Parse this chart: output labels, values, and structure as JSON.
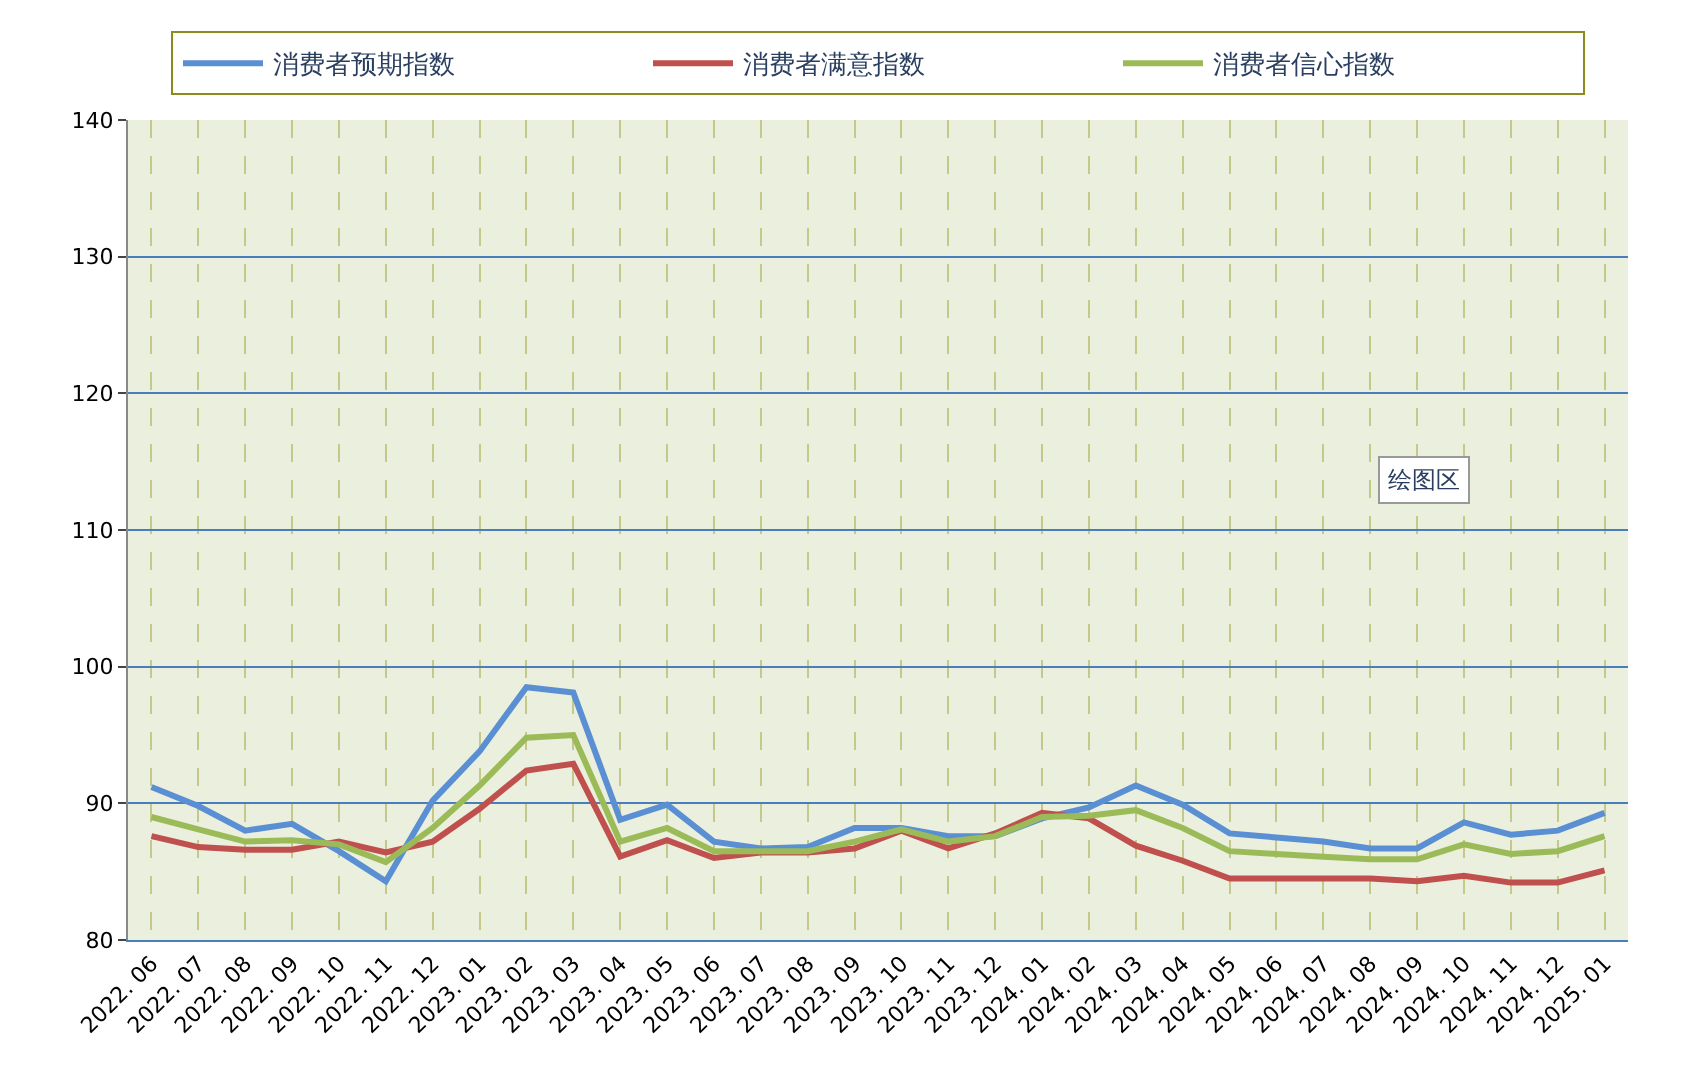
{
  "chart_data": {
    "type": "line",
    "categories": [
      "2022. 06",
      "2022. 07",
      "2022. 08",
      "2022. 09",
      "2022. 10",
      "2022. 11",
      "2022. 12",
      "2023. 01",
      "2023. 02",
      "2023. 03",
      "2023. 04",
      "2023. 05",
      "2023. 06",
      "2023. 07",
      "2023. 08",
      "2023. 09",
      "2023. 10",
      "2023. 11",
      "2023. 12",
      "2024. 01",
      "2024. 02",
      "2024. 03",
      "2024. 04",
      "2024. 05",
      "2024. 06",
      "2024. 07",
      "2024. 08",
      "2024. 09",
      "2024. 10",
      "2024. 11",
      "2024. 12",
      "2025. 01"
    ],
    "series": [
      {
        "name": "消费者预期指数",
        "color": "#5b8fd4",
        "values": [
          91.2,
          89.8,
          88.0,
          88.5,
          86.5,
          84.3,
          90.2,
          93.8,
          98.5,
          98.1,
          88.8,
          89.9,
          87.2,
          86.7,
          86.8,
          88.2,
          88.2,
          87.6,
          87.6,
          88.9,
          89.7,
          91.3,
          89.9,
          87.8,
          87.5,
          87.2,
          86.7,
          86.7,
          88.6,
          87.7,
          88.0,
          89.3
        ]
      },
      {
        "name": "消费者满意指数",
        "color": "#c0504d",
        "values": [
          87.6,
          86.8,
          86.6,
          86.6,
          87.2,
          86.4,
          87.2,
          89.6,
          92.4,
          92.9,
          86.1,
          87.3,
          86.0,
          86.4,
          86.4,
          86.7,
          88.0,
          86.7,
          87.8,
          89.3,
          88.9,
          86.9,
          85.8,
          84.5,
          84.5,
          84.5,
          84.5,
          84.3,
          84.7,
          84.2,
          84.2,
          85.1
        ]
      },
      {
        "name": "消费者信心指数",
        "color": "#9bbb59",
        "values": [
          89.0,
          88.1,
          87.2,
          87.3,
          87.0,
          85.7,
          88.2,
          91.3,
          94.8,
          95.0,
          87.2,
          88.2,
          86.5,
          86.5,
          86.5,
          87.2,
          88.1,
          87.2,
          87.6,
          89.0,
          89.1,
          89.5,
          88.2,
          86.5,
          86.3,
          86.1,
          85.9,
          85.9,
          87.0,
          86.3,
          86.5,
          87.6
        ]
      }
    ],
    "ylim": [
      80,
      140
    ],
    "yticks": [
      80,
      90,
      100,
      110,
      120,
      130,
      140
    ],
    "grid": true,
    "legend": "top",
    "marker": "none",
    "line_style": "solid",
    "annotations": [
      "绘图区"
    ]
  }
}
